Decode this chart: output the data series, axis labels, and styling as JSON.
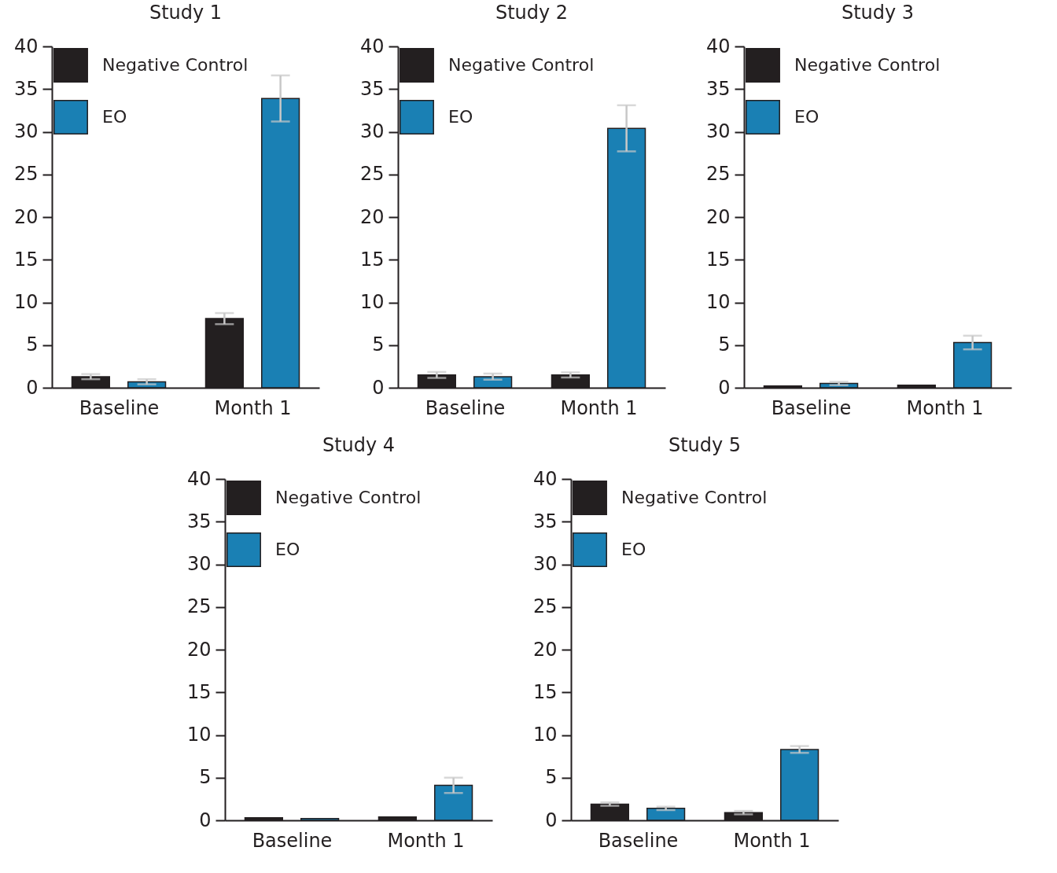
{
  "chart_data": [
    {
      "type": "bar",
      "title": "Study 1",
      "categories": [
        "Baseline",
        "Month 1"
      ],
      "ylim": [
        0,
        40
      ],
      "yticks": [
        0,
        5,
        10,
        15,
        20,
        25,
        30,
        35,
        40
      ],
      "grid": false,
      "legend": "top left",
      "series": [
        {
          "name": "Negative Control",
          "color": "#231f20",
          "values": [
            1.3,
            8.1
          ],
          "errors": [
            0.3,
            0.65
          ]
        },
        {
          "name": "EO",
          "color": "#1a80b4",
          "values": [
            0.7,
            33.9
          ],
          "errors": [
            0.3,
            2.7
          ]
        }
      ]
    },
    {
      "type": "bar",
      "title": "Study 2",
      "categories": [
        "Baseline",
        "Month 1"
      ],
      "ylim": [
        0,
        40
      ],
      "yticks": [
        0,
        5,
        10,
        15,
        20,
        25,
        30,
        35,
        40
      ],
      "grid": false,
      "legend": "top left",
      "series": [
        {
          "name": "Negative Control",
          "color": "#231f20",
          "values": [
            1.5,
            1.5
          ],
          "errors": [
            0.35,
            0.3
          ]
        },
        {
          "name": "EO",
          "color": "#1a80b4",
          "values": [
            1.3,
            30.4
          ],
          "errors": [
            0.35,
            2.7
          ]
        }
      ]
    },
    {
      "type": "bar",
      "title": "Study 3",
      "categories": [
        "Baseline",
        "Month 1"
      ],
      "ylim": [
        0,
        40
      ],
      "yticks": [
        0,
        5,
        10,
        15,
        20,
        25,
        30,
        35,
        40
      ],
      "grid": false,
      "legend": "top left",
      "series": [
        {
          "name": "Negative Control",
          "color": "#231f20",
          "values": [
            0.2,
            0.3
          ],
          "errors": [
            null,
            null
          ]
        },
        {
          "name": "EO",
          "color": "#1a80b4",
          "values": [
            0.5,
            5.3
          ],
          "errors": [
            0.2,
            0.8
          ]
        }
      ]
    },
    {
      "type": "bar",
      "title": "Study 4",
      "categories": [
        "Baseline",
        "Month 1"
      ],
      "ylim": [
        0,
        40
      ],
      "yticks": [
        0,
        5,
        10,
        15,
        20,
        25,
        30,
        35,
        40
      ],
      "grid": false,
      "legend": "top left",
      "series": [
        {
          "name": "Negative Control",
          "color": "#231f20",
          "values": [
            0.3,
            0.4
          ],
          "errors": [
            null,
            null
          ]
        },
        {
          "name": "EO",
          "color": "#1a80b4",
          "values": [
            0.2,
            4.1
          ],
          "errors": [
            null,
            0.9
          ]
        }
      ]
    },
    {
      "type": "bar",
      "title": "Study 5",
      "categories": [
        "Baseline",
        "Month 1"
      ],
      "ylim": [
        0,
        40
      ],
      "yticks": [
        0,
        5,
        10,
        15,
        20,
        25,
        30,
        35,
        40
      ],
      "grid": false,
      "legend": "top left",
      "series": [
        {
          "name": "Negative Control",
          "color": "#231f20",
          "values": [
            1.9,
            0.9
          ],
          "errors": [
            0.2,
            0.2
          ]
        },
        {
          "name": "EO",
          "color": "#1a80b4",
          "values": [
            1.4,
            8.3
          ],
          "errors": [
            0.2,
            0.4
          ]
        }
      ]
    }
  ]
}
